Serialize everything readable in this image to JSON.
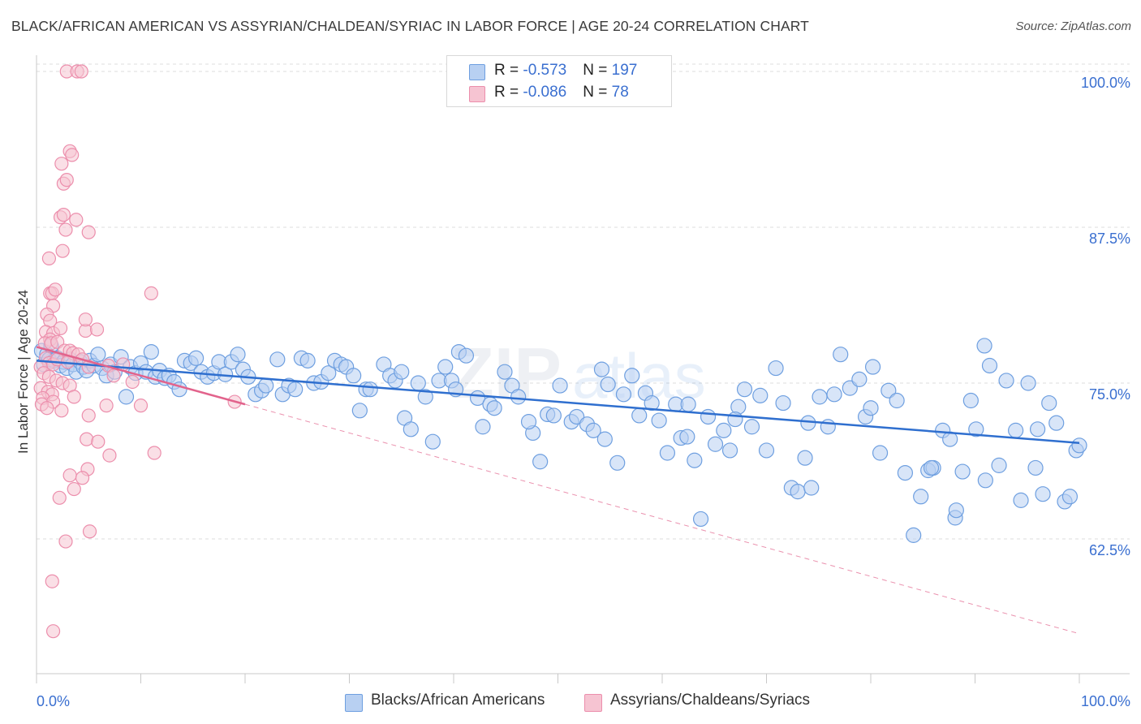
{
  "header": {
    "title": "BLACK/AFRICAN AMERICAN VS ASSYRIAN/CHALDEAN/SYRIAC IN LABOR FORCE | AGE 20-24 CORRELATION CHART",
    "source": "Source: ZipAtlas.com"
  },
  "colors": {
    "blue_fill": "#b8d0f2",
    "blue_stroke": "#6e9fe0",
    "blue_line": "#2f6fcf",
    "pink_fill": "#f6c4d2",
    "pink_stroke": "#ec8eac",
    "pink_line": "#e2638c",
    "axis_value_text": "#3a6fd0"
  },
  "legend": {
    "rows": [
      {
        "r_label": "R = ",
        "r_value": "-0.573",
        "n_label": "N = ",
        "n_value": "197"
      },
      {
        "r_label": "R = ",
        "r_value": "-0.086",
        "n_label": "N = ",
        "n_value": "78"
      }
    ]
  },
  "bottom_legend": [
    {
      "label": "Blacks/African Americans"
    },
    {
      "label": "Assyrians/Chaldeans/Syriacs"
    }
  ],
  "chart_data": {
    "type": "scatter",
    "title": "BLACK/AFRICAN AMERICAN VS ASSYRIAN/CHALDEAN/SYRIAC IN LABOR FORCE | AGE 20-24 CORRELATION CHART",
    "xlabel": "",
    "ylabel": "In Labor Force | Age 20-24",
    "xlim": [
      0,
      100
    ],
    "ylim": [
      51,
      102
    ],
    "x_tick_labels": [
      "0.0%",
      "100.0%"
    ],
    "y_ticks": [
      62.5,
      75.0,
      87.5,
      100.0
    ],
    "y_tick_labels": [
      "62.5%",
      "75.0%",
      "87.5%",
      "100.0%"
    ],
    "grid": "horizontal dashed",
    "legend_position": "top-center",
    "series": [
      {
        "name": "Blacks/African Americans",
        "r": -0.573,
        "n": 197,
        "trend": {
          "x": [
            0,
            100
          ],
          "y": [
            76.8,
            70.2
          ],
          "style": "solid"
        },
        "points": [
          [
            0.5,
            77.6
          ],
          [
            0.7,
            76.5
          ],
          [
            1.0,
            77.3
          ],
          [
            1.2,
            76.9
          ],
          [
            1.4,
            78.0
          ],
          [
            1.7,
            76.8
          ],
          [
            2.0,
            77.0
          ],
          [
            2.3,
            76.4
          ],
          [
            2.6,
            76.7
          ],
          [
            2.9,
            76.2
          ],
          [
            3.2,
            76.9
          ],
          [
            3.5,
            76.5
          ],
          [
            3.8,
            75.9
          ],
          [
            4.2,
            76.7
          ],
          [
            4.5,
            76.3
          ],
          [
            4.8,
            76.0
          ],
          [
            5.1,
            76.8
          ],
          [
            5.5,
            76.4
          ],
          [
            5.9,
            77.3
          ],
          [
            6.3,
            76.2
          ],
          [
            6.7,
            75.6
          ],
          [
            7.1,
            76.5
          ],
          [
            7.5,
            75.9
          ],
          [
            8.1,
            77.1
          ],
          [
            8.6,
            73.9
          ],
          [
            9.0,
            76.3
          ],
          [
            9.5,
            75.8
          ],
          [
            10.0,
            76.6
          ],
          [
            10.5,
            75.9
          ],
          [
            11.0,
            77.5
          ],
          [
            11.4,
            75.5
          ],
          [
            11.8,
            76.0
          ],
          [
            12.3,
            75.4
          ],
          [
            12.7,
            75.6
          ],
          [
            13.2,
            75.1
          ],
          [
            13.7,
            74.5
          ],
          [
            14.2,
            76.8
          ],
          [
            14.8,
            76.6
          ],
          [
            15.3,
            77.0
          ],
          [
            15.8,
            75.9
          ],
          [
            16.4,
            75.5
          ],
          [
            17.0,
            75.8
          ],
          [
            17.5,
            76.7
          ],
          [
            18.1,
            75.7
          ],
          [
            18.7,
            76.7
          ],
          [
            19.3,
            77.3
          ],
          [
            19.8,
            76.1
          ],
          [
            20.3,
            75.5
          ],
          [
            21.0,
            74.1
          ],
          [
            21.6,
            74.4
          ],
          [
            22.0,
            74.8
          ],
          [
            23.1,
            76.9
          ],
          [
            23.6,
            74.1
          ],
          [
            24.2,
            74.8
          ],
          [
            24.8,
            74.5
          ],
          [
            25.4,
            77.0
          ],
          [
            26.0,
            76.8
          ],
          [
            26.6,
            75.0
          ],
          [
            27.3,
            75.1
          ],
          [
            28.0,
            75.8
          ],
          [
            28.6,
            76.8
          ],
          [
            29.2,
            76.5
          ],
          [
            29.7,
            76.3
          ],
          [
            30.4,
            75.6
          ],
          [
            31.0,
            72.8
          ],
          [
            31.6,
            74.5
          ],
          [
            32.0,
            74.5
          ],
          [
            33.3,
            76.5
          ],
          [
            33.9,
            75.6
          ],
          [
            34.4,
            75.2
          ],
          [
            35.0,
            75.9
          ],
          [
            35.3,
            72.2
          ],
          [
            35.9,
            71.3
          ],
          [
            36.6,
            75.0
          ],
          [
            37.3,
            73.9
          ],
          [
            38.0,
            70.3
          ],
          [
            38.6,
            75.2
          ],
          [
            39.2,
            76.3
          ],
          [
            39.8,
            75.2
          ],
          [
            40.2,
            74.5
          ],
          [
            40.5,
            77.5
          ],
          [
            41.2,
            77.2
          ],
          [
            42.3,
            73.8
          ],
          [
            42.8,
            71.5
          ],
          [
            43.5,
            73.3
          ],
          [
            43.9,
            73.0
          ],
          [
            44.9,
            75.9
          ],
          [
            45.6,
            74.8
          ],
          [
            46.2,
            73.9
          ],
          [
            47.6,
            71.0
          ],
          [
            48.3,
            68.7
          ],
          [
            49.0,
            72.5
          ],
          [
            49.6,
            72.4
          ],
          [
            50.2,
            74.8
          ],
          [
            51.3,
            71.9
          ],
          [
            51.8,
            72.3
          ],
          [
            52.8,
            71.7
          ],
          [
            53.4,
            71.2
          ],
          [
            54.2,
            76.1
          ],
          [
            54.8,
            74.9
          ],
          [
            55.7,
            68.6
          ],
          [
            56.3,
            74.1
          ],
          [
            57.1,
            75.6
          ],
          [
            57.8,
            72.4
          ],
          [
            58.4,
            74.2
          ],
          [
            59.0,
            73.4
          ],
          [
            59.7,
            72.0
          ],
          [
            60.5,
            69.4
          ],
          [
            61.3,
            73.3
          ],
          [
            61.8,
            70.6
          ],
          [
            62.4,
            70.7
          ],
          [
            63.1,
            68.8
          ],
          [
            63.7,
            64.1
          ],
          [
            64.4,
            72.3
          ],
          [
            65.1,
            70.1
          ],
          [
            65.9,
            71.2
          ],
          [
            66.5,
            69.6
          ],
          [
            67.3,
            73.1
          ],
          [
            67.9,
            74.5
          ],
          [
            68.6,
            71.5
          ],
          [
            69.4,
            74.0
          ],
          [
            70.0,
            69.6
          ],
          [
            70.9,
            76.2
          ],
          [
            71.6,
            73.4
          ],
          [
            72.4,
            66.6
          ],
          [
            73.0,
            66.3
          ],
          [
            73.7,
            69.0
          ],
          [
            74.3,
            66.6
          ],
          [
            75.1,
            73.9
          ],
          [
            75.9,
            71.5
          ],
          [
            76.5,
            74.1
          ],
          [
            77.1,
            77.3
          ],
          [
            78.0,
            74.6
          ],
          [
            78.9,
            75.3
          ],
          [
            79.5,
            72.3
          ],
          [
            80.2,
            76.3
          ],
          [
            80.9,
            69.4
          ],
          [
            81.7,
            74.4
          ],
          [
            82.5,
            73.6
          ],
          [
            83.3,
            67.8
          ],
          [
            84.1,
            62.8
          ],
          [
            84.8,
            65.9
          ],
          [
            85.5,
            68.0
          ],
          [
            86.0,
            68.2
          ],
          [
            86.9,
            71.2
          ],
          [
            87.6,
            70.5
          ],
          [
            88.1,
            64.2
          ],
          [
            88.8,
            67.9
          ],
          [
            89.6,
            73.6
          ],
          [
            90.1,
            71.3
          ],
          [
            90.9,
            78.0
          ],
          [
            91.4,
            76.4
          ],
          [
            92.3,
            68.4
          ],
          [
            93.0,
            75.2
          ],
          [
            93.9,
            71.2
          ],
          [
            94.4,
            65.6
          ],
          [
            95.1,
            75.0
          ],
          [
            95.8,
            68.2
          ],
          [
            96.5,
            66.1
          ],
          [
            97.1,
            73.4
          ],
          [
            97.8,
            71.8
          ],
          [
            98.6,
            65.5
          ],
          [
            99.1,
            65.9
          ],
          [
            99.7,
            69.6
          ],
          [
            100.0,
            70.0
          ],
          [
            85.8,
            68.2
          ],
          [
            88.2,
            64.8
          ],
          [
            62.5,
            73.3
          ],
          [
            67.0,
            72.1
          ],
          [
            74.0,
            71.8
          ],
          [
            80.0,
            73.0
          ],
          [
            91.0,
            67.2
          ],
          [
            96.0,
            71.3
          ],
          [
            47.2,
            71.9
          ],
          [
            54.5,
            70.5
          ]
        ]
      },
      {
        "name": "Assyrians/Chaldeans/Syriacs",
        "r": -0.086,
        "n": 78,
        "trend": {
          "x": [
            0,
            20
          ],
          "y": [
            77.9,
            73.3
          ],
          "style": "solid",
          "extension": {
            "x": [
              20,
              100
            ],
            "y": [
              73.3,
              54.9
            ],
            "style": "dashed"
          }
        },
        "points": [
          [
            2.9,
            100.0
          ],
          [
            3.9,
            100.0
          ],
          [
            4.3,
            100.0
          ],
          [
            3.2,
            93.6
          ],
          [
            3.4,
            93.3
          ],
          [
            2.4,
            92.6
          ],
          [
            2.6,
            91.0
          ],
          [
            2.9,
            91.3
          ],
          [
            2.3,
            88.3
          ],
          [
            3.8,
            88.1
          ],
          [
            2.6,
            88.5
          ],
          [
            5.0,
            87.1
          ],
          [
            1.2,
            85.0
          ],
          [
            2.5,
            85.6
          ],
          [
            2.8,
            87.3
          ],
          [
            1.3,
            82.2
          ],
          [
            1.5,
            82.2
          ],
          [
            1.8,
            82.5
          ],
          [
            1.6,
            81.2
          ],
          [
            1.0,
            80.5
          ],
          [
            1.3,
            80.0
          ],
          [
            0.9,
            79.1
          ],
          [
            1.6,
            79.0
          ],
          [
            2.3,
            79.4
          ],
          [
            1.3,
            78.5
          ],
          [
            0.8,
            78.2
          ],
          [
            1.4,
            78.2
          ],
          [
            2.0,
            78.3
          ],
          [
            2.7,
            77.6
          ],
          [
            3.2,
            77.6
          ],
          [
            3.5,
            77.4
          ],
          [
            4.0,
            77.3
          ],
          [
            0.9,
            77.0
          ],
          [
            1.2,
            76.6
          ],
          [
            1.6,
            76.5
          ],
          [
            2.0,
            76.9
          ],
          [
            3.0,
            76.7
          ],
          [
            4.4,
            76.9
          ],
          [
            5.0,
            76.3
          ],
          [
            0.4,
            76.3
          ],
          [
            0.7,
            75.8
          ],
          [
            1.2,
            75.5
          ],
          [
            1.9,
            75.2
          ],
          [
            2.5,
            75.0
          ],
          [
            3.2,
            74.8
          ],
          [
            0.4,
            74.6
          ],
          [
            1.1,
            74.3
          ],
          [
            1.5,
            74.1
          ],
          [
            0.6,
            73.8
          ],
          [
            1.6,
            73.5
          ],
          [
            3.6,
            73.9
          ],
          [
            0.5,
            73.3
          ],
          [
            1.0,
            73.0
          ],
          [
            2.4,
            72.8
          ],
          [
            5.0,
            72.4
          ],
          [
            6.7,
            73.2
          ],
          [
            7.0,
            69.2
          ],
          [
            11.0,
            82.2
          ],
          [
            11.3,
            69.4
          ],
          [
            4.7,
            79.2
          ],
          [
            5.8,
            79.3
          ],
          [
            6.9,
            76.4
          ],
          [
            7.4,
            75.6
          ],
          [
            8.3,
            76.5
          ],
          [
            9.2,
            75.1
          ],
          [
            10.0,
            73.2
          ],
          [
            4.7,
            80.1
          ],
          [
            4.8,
            70.5
          ],
          [
            5.9,
            70.3
          ],
          [
            4.9,
            68.1
          ],
          [
            3.2,
            67.6
          ],
          [
            3.6,
            66.5
          ],
          [
            4.4,
            67.4
          ],
          [
            2.2,
            65.8
          ],
          [
            2.8,
            62.3
          ],
          [
            5.1,
            63.1
          ],
          [
            1.5,
            59.1
          ],
          [
            1.6,
            55.1
          ],
          [
            19.0,
            73.5
          ]
        ]
      }
    ]
  }
}
